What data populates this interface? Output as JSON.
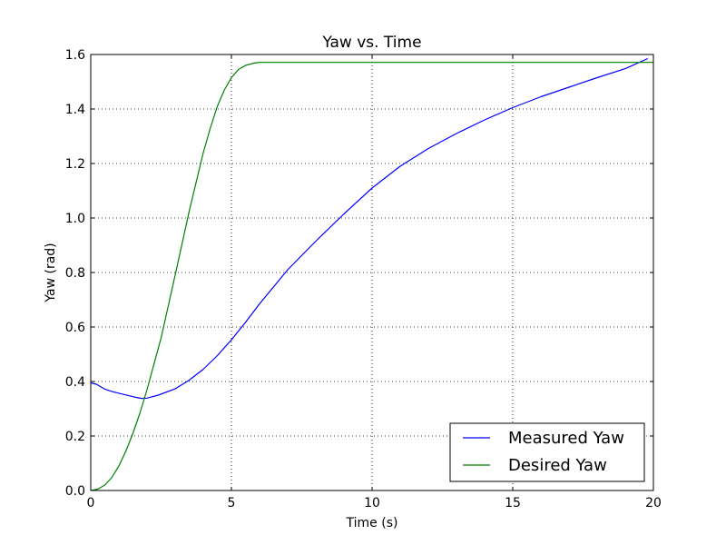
{
  "chart_data": {
    "type": "line",
    "title": "Yaw vs. Time",
    "xlabel": "Time (s)",
    "ylabel": "Yaw (rad)",
    "xlim": [
      0,
      20
    ],
    "ylim": [
      0.0,
      1.6
    ],
    "xticks": [
      0,
      5,
      10,
      15,
      20
    ],
    "xtick_labels": [
      "0",
      "5",
      "10",
      "15",
      "20"
    ],
    "yticks": [
      0.0,
      0.2,
      0.4,
      0.6,
      0.8,
      1.0,
      1.2,
      1.4,
      1.6
    ],
    "ytick_labels": [
      "0.0",
      "0.2",
      "0.4",
      "0.6",
      "0.8",
      "1.0",
      "1.2",
      "1.4",
      "1.6"
    ],
    "grid": true,
    "legend_position": "bottom-right",
    "series": [
      {
        "name": "Measured Yaw",
        "color": "#0000ff",
        "x": [
          0,
          0.2,
          0.5,
          0.8,
          1.2,
          1.6,
          1.8,
          2.0,
          2.4,
          3.0,
          3.5,
          4.0,
          4.5,
          5.0,
          5.5,
          6.0,
          7.0,
          8.0,
          9.0,
          10.0,
          11.0,
          12.0,
          13.0,
          14.0,
          15.0,
          16.0,
          17.0,
          18.0,
          19.0,
          19.8
        ],
        "y": [
          0.395,
          0.39,
          0.372,
          0.362,
          0.352,
          0.342,
          0.338,
          0.339,
          0.35,
          0.373,
          0.405,
          0.445,
          0.495,
          0.553,
          0.617,
          0.685,
          0.81,
          0.915,
          1.015,
          1.11,
          1.19,
          1.255,
          1.31,
          1.36,
          1.405,
          1.445,
          1.48,
          1.515,
          1.548,
          1.585
        ]
      },
      {
        "name": "Desired Yaw",
        "color": "#008000",
        "x": [
          0,
          0.25,
          0.5,
          0.75,
          1.0,
          1.25,
          1.5,
          1.75,
          2.0,
          2.5,
          3.0,
          3.5,
          4.0,
          4.25,
          4.5,
          4.75,
          5.0,
          5.25,
          5.5,
          5.75,
          5.9,
          6.0,
          8.0,
          10.0,
          12.0,
          14.0,
          16.0,
          18.0,
          20.0
        ],
        "y": [
          0.0,
          0.005,
          0.02,
          0.048,
          0.09,
          0.145,
          0.21,
          0.285,
          0.37,
          0.56,
          0.79,
          1.025,
          1.24,
          1.33,
          1.41,
          1.47,
          1.515,
          1.545,
          1.56,
          1.567,
          1.57,
          1.571,
          1.571,
          1.571,
          1.571,
          1.571,
          1.571,
          1.571,
          1.571
        ]
      }
    ]
  }
}
